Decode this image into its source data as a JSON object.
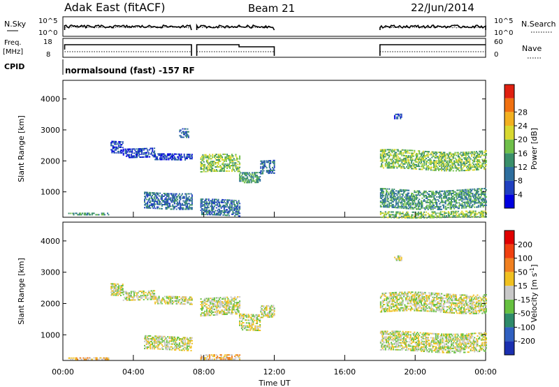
{
  "header": {
    "site": "Adak East (fitACF)",
    "beam": "Beam 21",
    "date": "22/Jun/2014"
  },
  "nsky_panel": {
    "left_label": "N.Sky",
    "left_ticks": [
      "10^5",
      "10^0"
    ],
    "right_label": "N.Search",
    "right_ticks": [
      "10^5",
      "10^0"
    ]
  },
  "freq_panel": {
    "left_label_1": "Freq.",
    "left_label_2": "[MHz]",
    "left_ticks": [
      "18",
      "8"
    ],
    "right_label": "Nave",
    "right_ticks": [
      "60",
      "0"
    ]
  },
  "cpid": {
    "label": "CPID",
    "text": "normalsound (fast) -157 RF"
  },
  "chart_data": [
    {
      "type": "heatmap",
      "name": "power",
      "ylabel": "Slant Range [km]",
      "xlabel": "",
      "ylim": [
        180,
        4600
      ],
      "xlim": [
        0,
        24
      ],
      "yticks": [
        1000,
        2000,
        3000,
        4000
      ],
      "colorbar": {
        "label": "Power [dB]",
        "ticks": [
          "4",
          "8",
          "12",
          "16",
          "20",
          "24",
          "28"
        ],
        "colors": [
          "#0000e0",
          "#2040c0",
          "#2e6e9e",
          "#3a8f6a",
          "#6fbf4a",
          "#d8d830",
          "#f2b020",
          "#f07010",
          "#e02010"
        ]
      },
      "echo_bands": [
        {
          "t": [
            0.3,
            2.6
          ],
          "r": [
            280,
            340
          ],
          "level": 3
        },
        {
          "t": [
            2.7,
            3.4
          ],
          "r": [
            2300,
            2700
          ],
          "level": 1
        },
        {
          "t": [
            3.4,
            5.2
          ],
          "r": [
            2150,
            2450
          ],
          "level": 1
        },
        {
          "t": [
            5.2,
            7.3
          ],
          "r": [
            2050,
            2250
          ],
          "level": 1
        },
        {
          "t": [
            6.6,
            7.1
          ],
          "r": [
            2800,
            3100
          ],
          "level": 2
        },
        {
          "t": [
            4.6,
            7.3
          ],
          "r": [
            500,
            1000
          ],
          "level": 2
        },
        {
          "t": [
            7.8,
            10.0
          ],
          "r": [
            1650,
            2200
          ],
          "level": 4
        },
        {
          "t": [
            7.8,
            10.0
          ],
          "r": [
            250,
            750
          ],
          "level": 2
        },
        {
          "t": [
            10.0,
            11.2
          ],
          "r": [
            1350,
            1700
          ],
          "level": 3
        },
        {
          "t": [
            11.2,
            12.0
          ],
          "r": [
            1600,
            2050
          ],
          "level": 2
        },
        {
          "t": [
            18.0,
            24.0
          ],
          "r": [
            1750,
            2350
          ],
          "level": 4
        },
        {
          "t": [
            18.0,
            24.0
          ],
          "r": [
            500,
            1100
          ],
          "level": 3
        },
        {
          "t": [
            18.0,
            24.0
          ],
          "r": [
            200,
            400
          ],
          "level": 4
        },
        {
          "t": [
            18.8,
            19.2
          ],
          "r": [
            3400,
            3550
          ],
          "level": 1
        }
      ]
    },
    {
      "type": "heatmap",
      "name": "velocity",
      "ylabel": "Slant Range [km]",
      "xlabel": "Time UT",
      "ylim": [
        180,
        4600
      ],
      "xlim": [
        0,
        24
      ],
      "yticks": [
        1000,
        2000,
        3000,
        4000
      ],
      "xticks": [
        "00:00",
        "04:00",
        "08:00",
        "12:00",
        "16:00",
        "20:00",
        "00:00"
      ],
      "colorbar": {
        "label": "Velocity [m s",
        "label_sup": "-1",
        "label_close": "]",
        "ticks": [
          "200",
          "100",
          "50",
          "15",
          "-15",
          "-50",
          "-100",
          "-200"
        ],
        "colors": [
          "#1a2fb0",
          "#3060c0",
          "#2e8a6a",
          "#66c040",
          "#c8c8c8",
          "#f0c020",
          "#f08020",
          "#f04010",
          "#e00000"
        ]
      },
      "echo_bands": [
        {
          "t": [
            0.3,
            2.6
          ],
          "r": [
            230,
            320
          ],
          "level": 5
        },
        {
          "t": [
            2.7,
            3.4
          ],
          "r": [
            2300,
            2700
          ],
          "level": 4
        },
        {
          "t": [
            3.4,
            5.2
          ],
          "r": [
            2150,
            2450
          ],
          "level": 4
        },
        {
          "t": [
            5.2,
            7.3
          ],
          "r": [
            2000,
            2250
          ],
          "level": 4
        },
        {
          "t": [
            4.6,
            7.3
          ],
          "r": [
            550,
            1000
          ],
          "level": 4
        },
        {
          "t": [
            7.8,
            10.0
          ],
          "r": [
            1650,
            2200
          ],
          "level": 4
        },
        {
          "t": [
            7.8,
            10.0
          ],
          "r": [
            230,
            400
          ],
          "level": 5
        },
        {
          "t": [
            10.0,
            11.2
          ],
          "r": [
            1200,
            1700
          ],
          "level": 4
        },
        {
          "t": [
            11.2,
            12.0
          ],
          "r": [
            1600,
            2000
          ],
          "level": 4
        },
        {
          "t": [
            18.0,
            24.0
          ],
          "r": [
            1750,
            2350
          ],
          "level": 4
        },
        {
          "t": [
            18.0,
            24.0
          ],
          "r": [
            500,
            1100
          ],
          "level": 4
        },
        {
          "t": [
            18.8,
            19.2
          ],
          "r": [
            3400,
            3550
          ],
          "level": 4
        }
      ]
    }
  ]
}
